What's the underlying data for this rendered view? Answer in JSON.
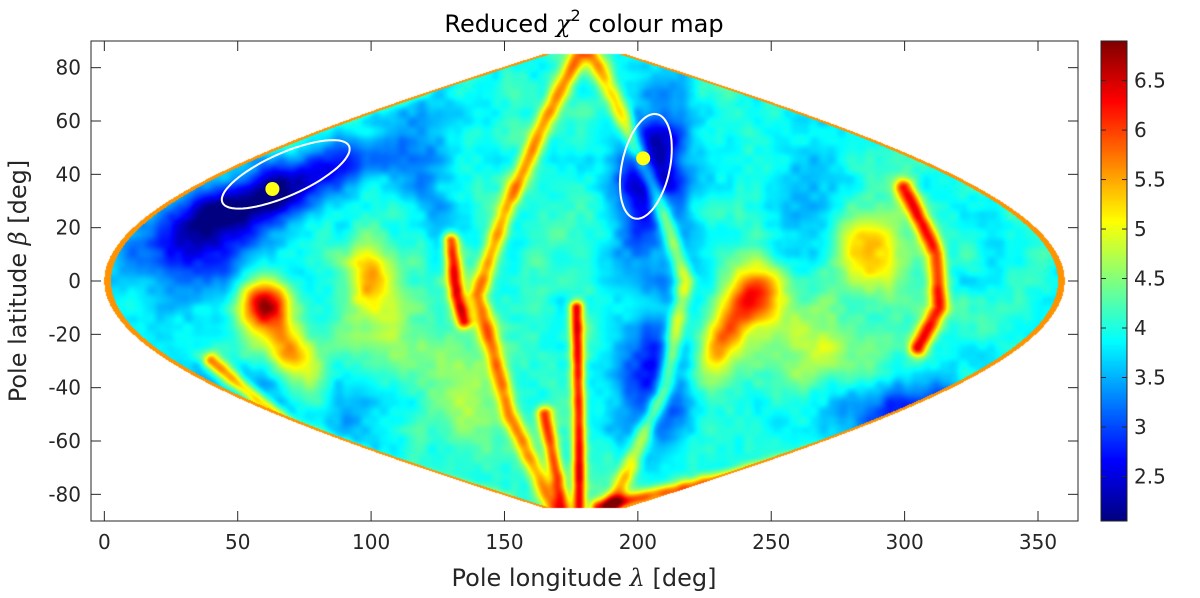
{
  "chart_data": {
    "type": "heatmap",
    "title": "Reduced χ² colour map",
    "title_parts": {
      "prefix": "Reduced ",
      "symbol": "χ",
      "superscript": "2",
      "suffix": " colour map"
    },
    "xlabel": "Pole longitude λ [deg]",
    "xlabel_parts": {
      "prefix": "Pole longitude ",
      "symbol": "λ",
      "suffix": " [deg]"
    },
    "ylabel": "Pole latitude β [deg]",
    "ylabel_parts": {
      "prefix": "Pole latitude ",
      "symbol": "β",
      "suffix": " [deg]"
    },
    "xlim": [
      -5,
      365
    ],
    "ylim": [
      -90,
      90
    ],
    "xticks": [
      0,
      50,
      100,
      150,
      200,
      250,
      300,
      350
    ],
    "yticks": [
      -80,
      -60,
      -40,
      -20,
      0,
      20,
      40,
      60,
      80
    ],
    "projection": "sinusoidal",
    "colormap": "jet",
    "colorbar": {
      "range": [
        2.05,
        6.9
      ],
      "ticks": [
        2.5,
        3,
        3.5,
        4,
        4.5,
        5,
        5.5,
        6,
        6.5
      ],
      "tick_labels": [
        "2.5",
        "3",
        "3.5",
        "4",
        "4.5",
        "5",
        "5.5",
        "6",
        "6.5"
      ]
    },
    "background_value": 4.0,
    "features": [
      {
        "lon": 63,
        "lat": 33,
        "dlon": 38,
        "dlat": 10,
        "rot": 22,
        "value": -1.9
      },
      {
        "lon": 38,
        "lat": 12,
        "dlon": 28,
        "dlat": 18,
        "rot": 0,
        "value": -1.2
      },
      {
        "lon": 205,
        "lat": 40,
        "dlon": 12,
        "dlat": 28,
        "rot": -10,
        "value": -1.9
      },
      {
        "lon": 215,
        "lat": 5,
        "dlon": 10,
        "dlat": 20,
        "rot": 0,
        "value": -0.6
      },
      {
        "lon": 205,
        "lat": -40,
        "dlon": 14,
        "dlat": 25,
        "rot": 0,
        "value": -1.3
      },
      {
        "lon": 85,
        "lat": -40,
        "dlon": 20,
        "dlat": 20,
        "rot": 0,
        "value": -0.8
      },
      {
        "lon": 305,
        "lat": -50,
        "dlon": 35,
        "dlat": 14,
        "rot": 0,
        "value": -1.3
      },
      {
        "lon": 40,
        "lat": -45,
        "dlon": 25,
        "dlat": 15,
        "rot": 0,
        "value": -0.6
      },
      {
        "lon": 120,
        "lat": 45,
        "dlon": 14,
        "dlat": 25,
        "rot": 0,
        "value": -0.7
      },
      {
        "lon": 265,
        "lat": 35,
        "dlon": 15,
        "dlat": 25,
        "rot": 0,
        "value": -0.5
      },
      {
        "lon": 60,
        "lat": -8,
        "dlon": 10,
        "dlat": 10,
        "rot": 0,
        "value": 2.4
      },
      {
        "lon": 70,
        "lat": -28,
        "dlon": 8,
        "dlat": 18,
        "rot": 30,
        "value": 1.8
      },
      {
        "lon": 100,
        "lat": 2,
        "dlon": 10,
        "dlat": 12,
        "rot": 0,
        "value": 1.5
      },
      {
        "lon": 245,
        "lat": -5,
        "dlon": 10,
        "dlat": 12,
        "rot": 0,
        "value": 2.0
      },
      {
        "lon": 232,
        "lat": -22,
        "dlon": 7,
        "dlat": 18,
        "rot": -25,
        "value": 1.8
      },
      {
        "lon": 287,
        "lat": 10,
        "dlon": 12,
        "dlat": 14,
        "rot": 0,
        "value": 1.6
      },
      {
        "lon": 100,
        "lat": -25,
        "dlon": 25,
        "dlat": 15,
        "rot": 0,
        "value": 0.8
      },
      {
        "lon": 265,
        "lat": -25,
        "dlon": 25,
        "dlat": 15,
        "rot": 0,
        "value": 0.8
      },
      {
        "lon": 135,
        "lat": -40,
        "dlon": 15,
        "dlat": 25,
        "rot": 0,
        "value": 0.6
      },
      {
        "lon": 30,
        "lat": 0,
        "dlon": 15,
        "dlat": 10,
        "rot": 0,
        "value": -0.2
      }
    ],
    "ridges": [
      {
        "points": [
          [
            178,
            85
          ],
          [
            165,
            60
          ],
          [
            150,
            25
          ],
          [
            140,
            -5
          ],
          [
            152,
            -50
          ],
          [
            168,
            -85
          ]
        ],
        "value": 1.6,
        "width": 3.5
      },
      {
        "points": [
          [
            183,
            85
          ],
          [
            195,
            60
          ],
          [
            208,
            30
          ],
          [
            218,
            0
          ],
          [
            210,
            -40
          ],
          [
            190,
            -85
          ]
        ],
        "value": 1.4,
        "width": 3.5
      },
      {
        "points": [
          [
            130,
            15
          ],
          [
            132,
            -5
          ],
          [
            135,
            -15
          ]
        ],
        "value": 2.2,
        "width": 3
      },
      {
        "points": [
          [
            300,
            35
          ],
          [
            312,
            10
          ],
          [
            313,
            -10
          ],
          [
            305,
            -25
          ]
        ],
        "value": 2.2,
        "width": 3.5
      },
      {
        "points": [
          [
            177,
            -10
          ],
          [
            178,
            -50
          ],
          [
            178,
            -85
          ]
        ],
        "value": 2.3,
        "width": 2.5
      },
      {
        "points": [
          [
            165,
            -50
          ],
          [
            172,
            -85
          ]
        ],
        "value": 2.0,
        "width": 3
      },
      {
        "points": [
          [
            185,
            -85
          ],
          [
            230,
            -75
          ],
          [
            290,
            -60
          ],
          [
            330,
            -45
          ]
        ],
        "value": 2.0,
        "width": 3
      },
      {
        "points": [
          [
            40,
            -30
          ],
          [
            70,
            -55
          ],
          [
            110,
            -72
          ],
          [
            150,
            -83
          ]
        ],
        "value": 1.8,
        "width": 3
      },
      {
        "points": [
          [
            30,
            40
          ],
          [
            70,
            58
          ],
          [
            120,
            72
          ]
        ],
        "value": 0.9,
        "width": 3
      }
    ],
    "contours": [
      {
        "center": [
          68,
          40
        ],
        "rx": 26,
        "ry": 8,
        "rot": 24
      },
      {
        "center": [
          203,
          43
        ],
        "rx": 9,
        "ry": 20,
        "rot": -12
      }
    ],
    "markers": [
      {
        "lon": 63,
        "lat": 34.5,
        "color": "#ffff14"
      },
      {
        "lon": 202,
        "lat": 46,
        "color": "#ffff14"
      }
    ],
    "colors": {
      "contour": "#ffffff",
      "marker": "#ffff14",
      "axes": "#262626"
    }
  }
}
